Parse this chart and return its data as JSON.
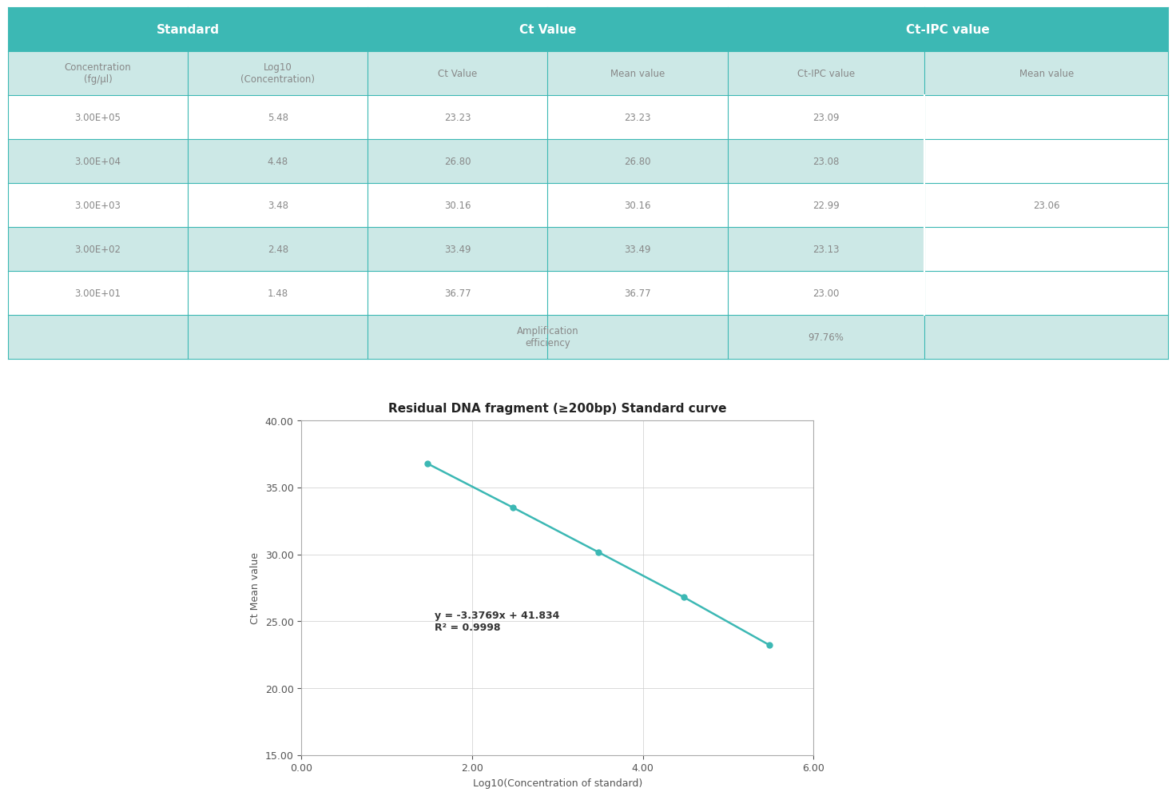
{
  "table": {
    "header_row1_labels": [
      "Standard",
      "Ct Value",
      "Ct-IPC value"
    ],
    "header_row2": [
      "Concentration\n(fg/μl)",
      "Log10\n(Concentration)",
      "Ct Value",
      "Mean value",
      "Ct-IPC value",
      "Mean value"
    ],
    "rows": [
      [
        "3.00E+05",
        "5.48",
        "23.23",
        "23.23",
        "23.09",
        ""
      ],
      [
        "3.00E+04",
        "4.48",
        "26.80",
        "26.80",
        "23.08",
        ""
      ],
      [
        "3.00E+03",
        "3.48",
        "30.16",
        "30.16",
        "22.99",
        "23.06"
      ],
      [
        "3.00E+02",
        "2.48",
        "33.49",
        "33.49",
        "23.13",
        ""
      ],
      [
        "3.00E+01",
        "1.48",
        "36.77",
        "36.77",
        "23.00",
        ""
      ],
      [
        "",
        "",
        "Amplification\nefficiency",
        "",
        "97.76%",
        ""
      ]
    ],
    "header_color": "#3cb8b4",
    "subheader_color": "#cce8e6",
    "row_colors": [
      "#ffffff",
      "#cce8e6",
      "#ffffff",
      "#cce8e6",
      "#ffffff",
      "#cce8e6"
    ],
    "header_text_color": "#ffffff",
    "data_text_color": "#888888",
    "border_color": "#3cb8b4",
    "col_widths": [
      0.155,
      0.155,
      0.155,
      0.155,
      0.17,
      0.21
    ]
  },
  "chart": {
    "title": "Residual DNA fragment (≥200bp) Standard curve",
    "xlabel": "Log10(Concentration of standard)",
    "ylabel": "Ct Mean value",
    "x_data": [
      1.48,
      2.48,
      3.48,
      4.48,
      5.48
    ],
    "y_data": [
      36.77,
      33.49,
      30.16,
      26.8,
      23.23
    ],
    "xlim": [
      0.0,
      6.0
    ],
    "ylim": [
      15.0,
      40.0
    ],
    "xticks": [
      0.0,
      2.0,
      4.0,
      6.0
    ],
    "yticks": [
      15.0,
      20.0,
      25.0,
      30.0,
      35.0,
      40.0
    ],
    "line_color": "#3cb8b4",
    "equation": "y = -3.3769x + 41.834",
    "r_squared": "R² = 0.9998",
    "title_fontsize": 11,
    "axis_label_fontsize": 9,
    "tick_fontsize": 9,
    "annotation_fontsize": 9
  }
}
